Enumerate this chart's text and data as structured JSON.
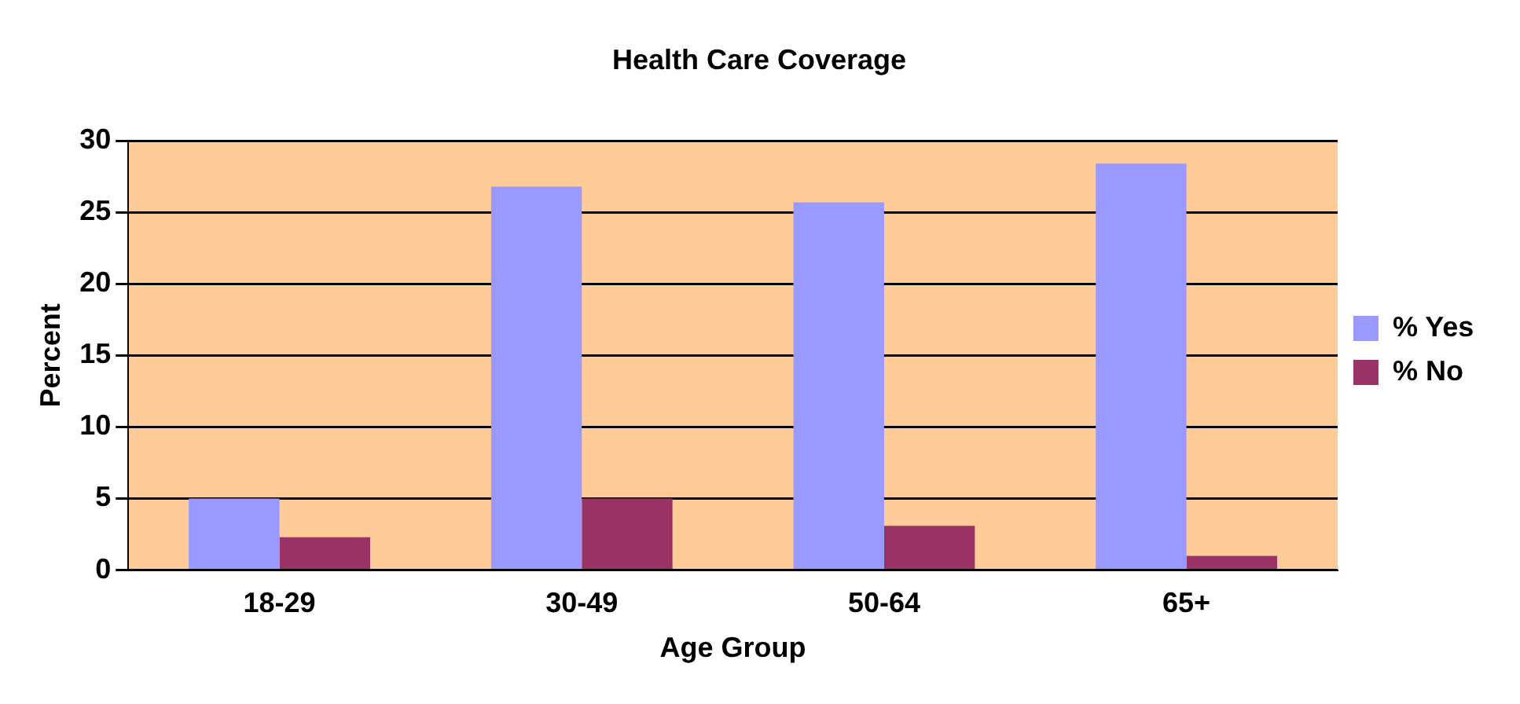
{
  "chart_data": {
    "type": "bar",
    "title": "Health Care Coverage",
    "xlabel": "Age Group",
    "ylabel": "Percent",
    "categories": [
      "18-29",
      "30-49",
      "50-64",
      "65+"
    ],
    "series": [
      {
        "name": "% Yes",
        "color": "#9999ff",
        "values": [
          5,
          26.8,
          25.7,
          28.4
        ]
      },
      {
        "name": "% No",
        "color": "#993366",
        "values": [
          2.3,
          5,
          3.1,
          1
        ]
      }
    ],
    "ylim": [
      0,
      30
    ],
    "yticks": [
      0,
      5,
      10,
      15,
      20,
      25,
      30
    ],
    "grid": "y",
    "legend": "right"
  }
}
